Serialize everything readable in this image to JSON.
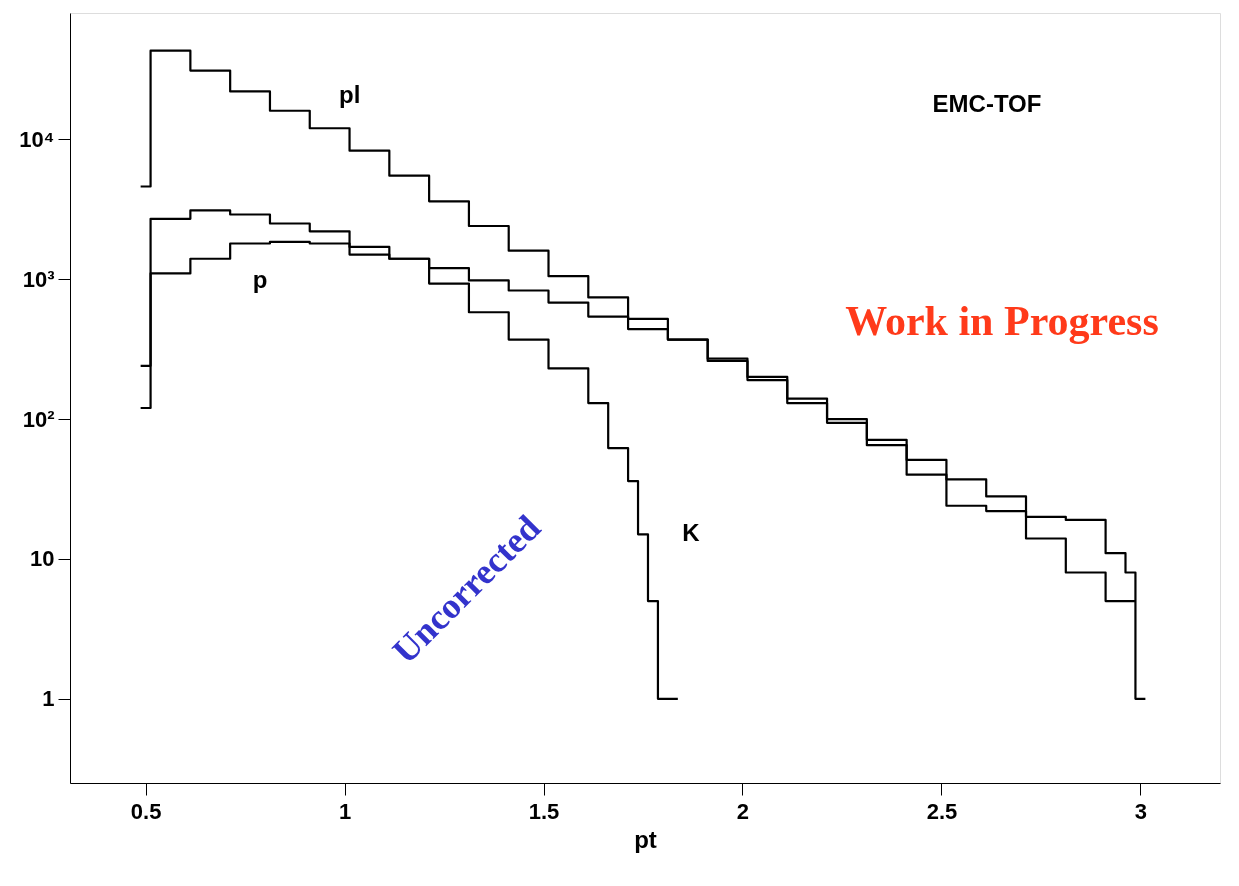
{
  "chart_data": {
    "type": "step",
    "xlabel": "pt",
    "xlim": [
      0.31,
      3.2
    ],
    "ylim": [
      0.25,
      80000
    ],
    "log": "y",
    "grid": false,
    "legend": false,
    "xticks": [
      0.5,
      1,
      1.5,
      2,
      2.5,
      3
    ],
    "yticks": [
      1,
      10,
      {
        "value": 100,
        "label": "10²"
      },
      {
        "value": 1000,
        "label": "10³"
      },
      {
        "value": 10000,
        "label": "10⁴"
      }
    ],
    "series": [
      {
        "name": "pl",
        "color": "#000000",
        "x": [
          0.4875,
          0.5125,
          0.6125,
          0.7125,
          0.8125,
          0.9125,
          1.0125,
          1.1125,
          1.2125,
          1.3125,
          1.4125,
          1.5125,
          1.6125,
          1.7125,
          1.8125,
          1.9125,
          2.0125,
          2.1125,
          2.2125,
          2.3125,
          2.4125,
          2.5125,
          2.6125,
          2.7125,
          2.8125,
          2.9125,
          2.9625,
          2.9875,
          3.0125
        ],
        "values": [
          4600,
          43000,
          31000,
          22000,
          16000,
          12000,
          8300,
          5500,
          3600,
          2400,
          1600,
          1050,
          740,
          520,
          370,
          260,
          190,
          140,
          100,
          71,
          51,
          37,
          28,
          20,
          19,
          11,
          8,
          1,
          1
        ]
      },
      {
        "name": "p",
        "color": "#000000",
        "x": [
          0.4875,
          0.5125,
          0.6125,
          0.7125,
          0.8125,
          0.9125,
          1.0125,
          1.1125,
          1.2125,
          1.3125,
          1.4125,
          1.5125,
          1.6125,
          1.7125,
          1.8125,
          1.9125,
          2.0125,
          2.1125,
          2.2125,
          2.3125,
          2.4125,
          2.5125,
          2.6125,
          2.7125,
          2.8125,
          2.9125,
          2.9875
        ],
        "values": [
          120,
          1100,
          1400,
          1800,
          1850,
          1800,
          1500,
          1400,
          1200,
          980,
          830,
          680,
          540,
          440,
          370,
          270,
          200,
          130,
          94,
          65,
          40,
          24,
          22,
          14,
          8,
          5,
          5
        ]
      },
      {
        "name": "K",
        "color": "#000000",
        "x": [
          0.4875,
          0.5125,
          0.6125,
          0.7125,
          0.8125,
          0.9125,
          1.0125,
          1.1125,
          1.2125,
          1.3125,
          1.4125,
          1.5125,
          1.6125,
          1.6625,
          1.7125,
          1.7375,
          1.7625,
          1.7875,
          1.8375
        ],
        "values": [
          240,
          2700,
          3100,
          2900,
          2500,
          2200,
          1700,
          1400,
          930,
          580,
          370,
          230,
          130,
          62,
          36,
          15,
          5,
          1,
          1
        ]
      }
    ],
    "annotations": [
      "EMC-TOF",
      "Work in Progress",
      "Uncorrected"
    ]
  }
}
